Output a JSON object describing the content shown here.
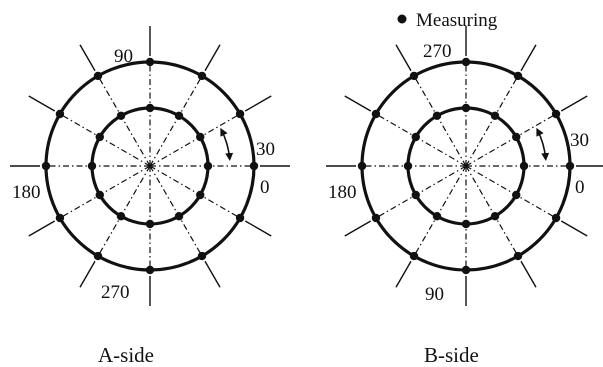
{
  "legend": {
    "marker_label": "Measuring"
  },
  "diagrams": [
    {
      "caption": "A-side",
      "angle_labels": {
        "top": "90",
        "right_upper": "30",
        "right": "0",
        "left": "180",
        "bottom": "270"
      }
    },
    {
      "caption": "B-side",
      "angle_labels": {
        "top": "270",
        "right_upper": "30",
        "right": "0",
        "left": "180",
        "bottom": "90"
      }
    }
  ]
}
